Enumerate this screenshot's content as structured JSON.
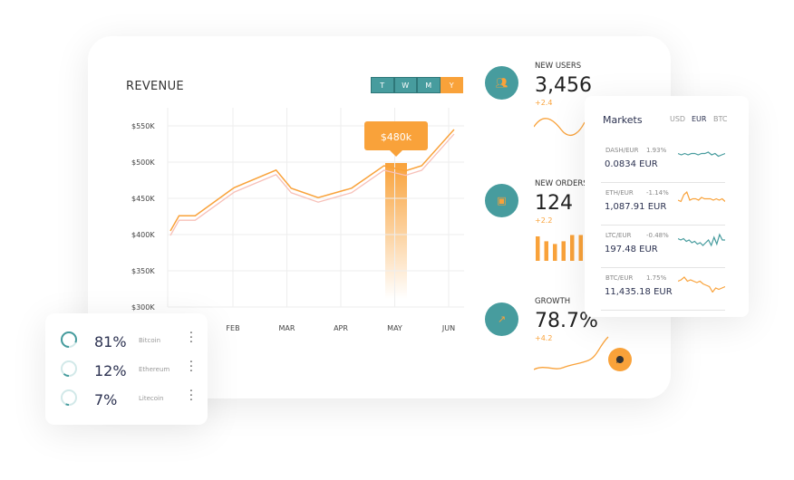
{
  "revenue": {
    "title": "REVENUE",
    "periods": [
      {
        "label": "T",
        "active": false
      },
      {
        "label": "W",
        "active": false
      },
      {
        "label": "M",
        "active": false
      },
      {
        "label": "Y",
        "active": true
      }
    ],
    "tooltip": "$480k",
    "highlight_month": "MAY"
  },
  "chart_data": {
    "type": "line",
    "title": "REVENUE",
    "x_ticks": [
      "FEB",
      "MAR",
      "APR",
      "MAY",
      "JUN"
    ],
    "y_ticks": [
      "$300K",
      "$350K",
      "$400K",
      "$450K",
      "$500K",
      "$550K"
    ],
    "ylim": [
      300,
      550
    ],
    "y_unit": "$K",
    "grid": true,
    "series": [
      {
        "points": [
          [
            0.84,
            405
          ],
          [
            1.0,
            426
          ],
          [
            1.3,
            426
          ],
          [
            1.97,
            462
          ],
          [
            2.03,
            465
          ],
          [
            2.8,
            489
          ],
          [
            3.08,
            464
          ],
          [
            3.58,
            451
          ],
          [
            4.2,
            464
          ],
          [
            4.8,
            495
          ],
          [
            5.2,
            488
          ],
          [
            5.5,
            495
          ],
          [
            6.1,
            545
          ]
        ]
      }
    ]
  },
  "kpis": [
    {
      "label": "NEW USERS",
      "value": "3,456",
      "delta": "+2.4",
      "icon": "users-icon"
    },
    {
      "label": "NEW ORDERS",
      "value": "124",
      "delta": "+2.2",
      "icon": "bag-icon",
      "bars": [
        0.9,
        0.72,
        0.62,
        0.72,
        0.95,
        0.95
      ]
    },
    {
      "label": "GROWTH",
      "value": "78.7%",
      "delta": "+4.2",
      "icon": "trend-up-icon"
    }
  ],
  "markets": {
    "title": "Markets",
    "currencies": [
      {
        "label": "USD",
        "active": false
      },
      {
        "label": "EUR",
        "active": true
      },
      {
        "label": "BTC",
        "active": false
      }
    ],
    "rows": [
      {
        "pair": "DASH/EUR",
        "change": "1.93%",
        "price": "0.0834  EUR",
        "color": "#479c9e",
        "spark": [
          5,
          6,
          5,
          6,
          5,
          5,
          6,
          5,
          5,
          4,
          6,
          5,
          7,
          6,
          5
        ]
      },
      {
        "pair": "ETH/EUR",
        "change": "-1.14%",
        "price": "1,087.91  EUR",
        "color": "#f9a23a",
        "spark": [
          8,
          9,
          4,
          2,
          8,
          7,
          7,
          8,
          6,
          7,
          7,
          7,
          8,
          7,
          8,
          7,
          9
        ]
      },
      {
        "pair": "LTC/EUR",
        "change": "-0.48%",
        "price": "197.48  EUR",
        "color": "#479c9e",
        "spark": [
          5,
          6,
          5,
          7,
          6,
          8,
          7,
          9,
          8,
          10,
          8,
          6,
          10,
          4,
          9,
          2,
          6,
          6
        ]
      },
      {
        "pair": "BTC/EUR",
        "change": "1.75%",
        "price": "11,435.18 EUR",
        "color": "#f9a23a",
        "spark": [
          5,
          4,
          2,
          5,
          4,
          5,
          6,
          5,
          7,
          8,
          9,
          13,
          10,
          11,
          10,
          9
        ]
      }
    ]
  },
  "coins": [
    {
      "percent": "81%",
      "name": "Bitcoin",
      "fraction": 0.81
    },
    {
      "percent": "12%",
      "name": "Ethereum",
      "fraction": 0.12
    },
    {
      "percent": "7%",
      "name": "Litecoin",
      "fraction": 0.07
    }
  ],
  "colors": {
    "teal": "#479c9e",
    "orange": "#f9a23a"
  }
}
